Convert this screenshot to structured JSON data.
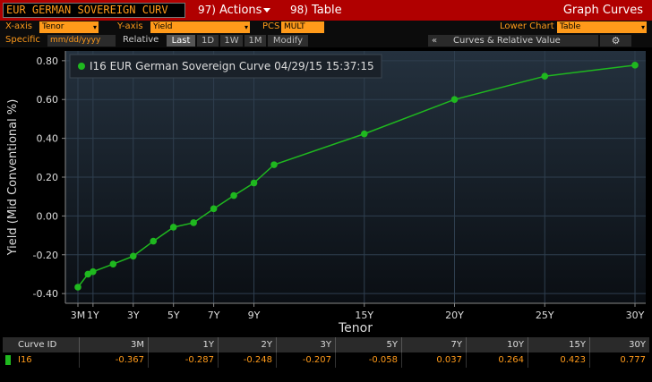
{
  "titlebar": {
    "security_text": "EUR GERMAN SOVEREIGN CURV",
    "actions_num": "97)",
    "actions_label": "Actions",
    "table_num": "98)",
    "table_label": "Table",
    "graph_curves": "Graph Curves"
  },
  "row1": {
    "xaxis_label": "X-axis",
    "xaxis_value": "Tenor",
    "yaxis_label": "Y-axis",
    "yaxis_value": "Yield",
    "pcs_label": "PCS",
    "pcs_value": "MULT",
    "lower_chart_label": "Lower Chart",
    "lower_chart_value": "Table"
  },
  "row2": {
    "specific_label": "Specific",
    "date_placeholder": "mm/dd/yyyy",
    "relative_label": "Relative",
    "buttons": [
      "Last",
      "1D",
      "1W",
      "1M",
      "Modify"
    ],
    "curves_arrow": "«",
    "curves_label": "Curves & Relative Value",
    "gear": "⚙"
  },
  "colors": {
    "accent": "#ff9a1a",
    "title_bar": "#b00000",
    "series": "#1fb81f",
    "grid": "#2f3f4f"
  },
  "chart_data": {
    "type": "line",
    "legend": "I16 EUR German Sovereign Curve 04/29/15 15:37:15",
    "legend_position": "top-left",
    "xlabel": "Tenor",
    "ylabel": "Yield (Mid Conventional %)",
    "ylim": [
      -0.45,
      0.85
    ],
    "yticks": [
      "0.80",
      "0.60",
      "0.40",
      "0.20",
      "0.00",
      "-0.20",
      "-0.40"
    ],
    "ytick_values": [
      0.8,
      0.6,
      0.4,
      0.2,
      0.0,
      -0.2,
      -0.4
    ],
    "xticks": [
      "3M",
      "1Y",
      "3Y",
      "5Y",
      "7Y",
      "9Y",
      "15Y",
      "20Y",
      "25Y",
      "30Y"
    ],
    "xtick_values": [
      0.25,
      1,
      3,
      5,
      7,
      9,
      15,
      20,
      25,
      30
    ],
    "grid": true,
    "series": [
      {
        "name": "I16",
        "x": [
          0.25,
          0.75,
          1,
          2,
          3,
          4,
          5,
          6,
          7,
          8,
          9,
          10,
          15,
          20,
          25,
          30
        ],
        "y": [
          -0.367,
          -0.3,
          -0.287,
          -0.248,
          -0.207,
          -0.13,
          -0.058,
          -0.035,
          0.037,
          0.105,
          0.17,
          0.264,
          0.423,
          0.6,
          0.72,
          0.777
        ]
      }
    ]
  },
  "table": {
    "header_id": "Curve ID",
    "columns": [
      "3M",
      "1Y",
      "2Y",
      "3Y",
      "5Y",
      "7Y",
      "10Y",
      "15Y",
      "30Y"
    ],
    "rows": [
      {
        "id": "I16",
        "values": [
          "-0.367",
          "-0.287",
          "-0.248",
          "-0.207",
          "-0.058",
          "0.037",
          "0.264",
          "0.423",
          "0.777"
        ]
      }
    ]
  }
}
